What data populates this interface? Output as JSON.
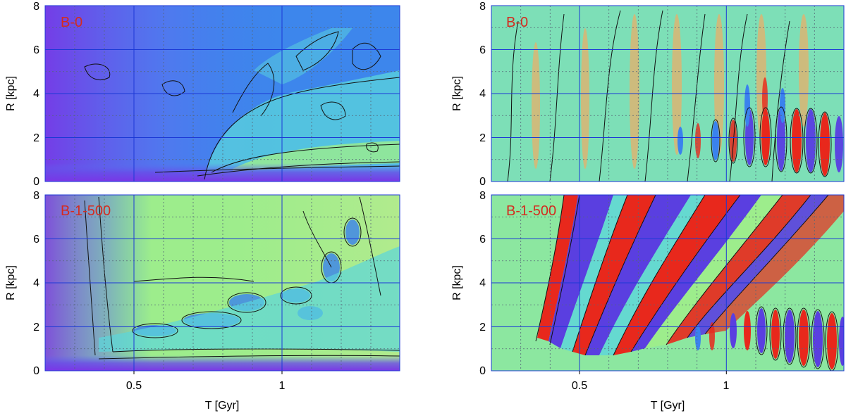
{
  "chart_data": [
    {
      "type": "heatmap",
      "panel_label": "B-0",
      "xlabel": "",
      "ylabel": "R [kpc]",
      "xlim": [
        0.2,
        1.4
      ],
      "ylim": [
        0,
        8
      ],
      "x_ticks": [
        "0.5",
        "1"
      ],
      "y_ticks": [
        "0",
        "2",
        "4",
        "6",
        "8"
      ],
      "grid": true,
      "colormap": "purple-blue-cyan-green (low amplitude)"
    },
    {
      "type": "heatmap",
      "panel_label": "B-0",
      "xlabel": "",
      "ylabel": "R [kpc]",
      "xlim": [
        0.2,
        1.4
      ],
      "ylim": [
        0,
        8
      ],
      "x_ticks": [
        "0.5",
        "1"
      ],
      "y_ticks": [
        "0",
        "2",
        "4",
        "6",
        "8"
      ],
      "grid": true,
      "colormap": "blue-green-red (oscillating)"
    },
    {
      "type": "heatmap",
      "panel_label": "B-1-500",
      "xlabel": "T [Gyr]",
      "ylabel": "R [kpc]",
      "xlim": [
        0.2,
        1.4
      ],
      "ylim": [
        0,
        8
      ],
      "x_ticks": [
        "0.5",
        "1"
      ],
      "y_ticks": [
        "0",
        "2",
        "4",
        "6",
        "8"
      ],
      "grid": true,
      "colormap": "purple-blue-cyan-green (low amplitude)"
    },
    {
      "type": "heatmap",
      "panel_label": "B-1-500",
      "xlabel": "T [Gyr]",
      "ylabel": "R [kpc]",
      "xlim": [
        0.2,
        1.4
      ],
      "ylim": [
        0,
        8
      ],
      "x_ticks": [
        "0.5",
        "1"
      ],
      "y_ticks": [
        "0",
        "2",
        "4",
        "6",
        "8"
      ],
      "grid": true,
      "colormap": "blue-green-red (oscillating)"
    }
  ],
  "colors": {
    "grid_major": "#1c39d6",
    "grid_minor": "#556677",
    "panel_label": "#d42b1f",
    "purple": "#7a35e6",
    "blue": "#3a82ee",
    "cyan": "#5bd6dc",
    "green": "#9ded8c",
    "red": "#e8281c"
  }
}
